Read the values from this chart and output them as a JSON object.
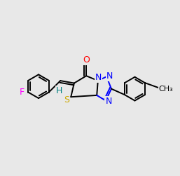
{
  "bg_color": "#e8e8e8",
  "bond_color": "#000000",
  "N_color": "#0000ff",
  "O_color": "#ff0000",
  "S_color": "#ccaa00",
  "F_color": "#ff00ff",
  "H_color": "#008080",
  "lw": 1.4,
  "dbo": 0.012,
  "fs": 9
}
